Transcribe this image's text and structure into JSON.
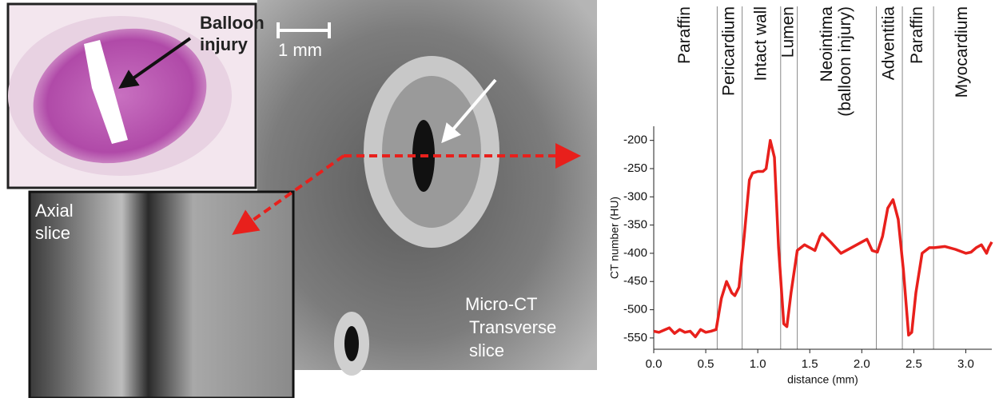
{
  "panels": {
    "histology": {
      "label": [
        "Balloon",
        "injury"
      ]
    },
    "scale_bar": "1 mm",
    "axial": {
      "label": [
        "Axial",
        "slice"
      ]
    },
    "ct": {
      "label": [
        "Micro-CT",
        "Transverse",
        "slice"
      ]
    }
  },
  "chart_data": {
    "type": "line",
    "xlabel": "distance (mm)",
    "ylabel": "CT number (HU)",
    "color": "#e8201c",
    "x": [
      0,
      0.05,
      0.1,
      0.15,
      0.2,
      0.25,
      0.3,
      0.35,
      0.4,
      0.45,
      0.5,
      0.55,
      0.6,
      0.65,
      0.7,
      0.75,
      0.78,
      0.82,
      0.87,
      0.92,
      0.95,
      1.0,
      1.05,
      1.08,
      1.12,
      1.16,
      1.2,
      1.25,
      1.28,
      1.32,
      1.38,
      1.45,
      1.5,
      1.55,
      1.6,
      1.62,
      1.7,
      1.75,
      1.8,
      1.85,
      1.9,
      2.0,
      2.05,
      2.1,
      2.15,
      2.2,
      2.25,
      2.3,
      2.35,
      2.4,
      2.45,
      2.48,
      2.52,
      2.58,
      2.65,
      2.7,
      2.8,
      2.9,
      3.0,
      3.05,
      3.1,
      3.15,
      3.2,
      3.22,
      3.25
    ],
    "values": [
      -538,
      -540,
      -536,
      -532,
      -542,
      -535,
      -540,
      -538,
      -548,
      -535,
      -540,
      -538,
      -535,
      -480,
      -450,
      -470,
      -475,
      -460,
      -370,
      -270,
      -258,
      -255,
      -255,
      -250,
      -200,
      -230,
      -390,
      -525,
      -530,
      -470,
      -395,
      -385,
      -390,
      -395,
      -370,
      -365,
      -380,
      -390,
      -400,
      -395,
      -390,
      -380,
      -375,
      -395,
      -398,
      -370,
      -320,
      -305,
      -340,
      -430,
      -545,
      -540,
      -470,
      -400,
      -390,
      -390,
      -388,
      -393,
      -400,
      -398,
      -390,
      -385,
      -400,
      -390,
      -380
    ],
    "xlim": [
      0,
      3.25
    ],
    "ylim": [
      -570,
      -175
    ],
    "xticks": [
      {
        "value": 0,
        "label": "0.0"
      },
      0.5,
      {
        "value": 1,
        "label": "1.0"
      },
      1.5,
      {
        "value": 2,
        "label": "2.0"
      },
      2.5,
      {
        "value": 3,
        "label": "3.0"
      }
    ],
    "yticks": [
      -200,
      -250,
      -300,
      -350,
      -400,
      -450,
      -500,
      -550
    ],
    "boundaries": [
      0.61,
      0.85,
      1.22,
      1.38,
      2.14,
      2.39,
      2.69
    ],
    "regions": [
      [
        "Paraffin"
      ],
      [
        "Pericardium"
      ],
      [
        "Intact wall"
      ],
      [
        "Lumen"
      ],
      [
        "Neointima",
        "(balloon injury)"
      ],
      [
        "Adventitia"
      ],
      [
        "Paraffin"
      ],
      [
        "Myocardium"
      ]
    ]
  }
}
